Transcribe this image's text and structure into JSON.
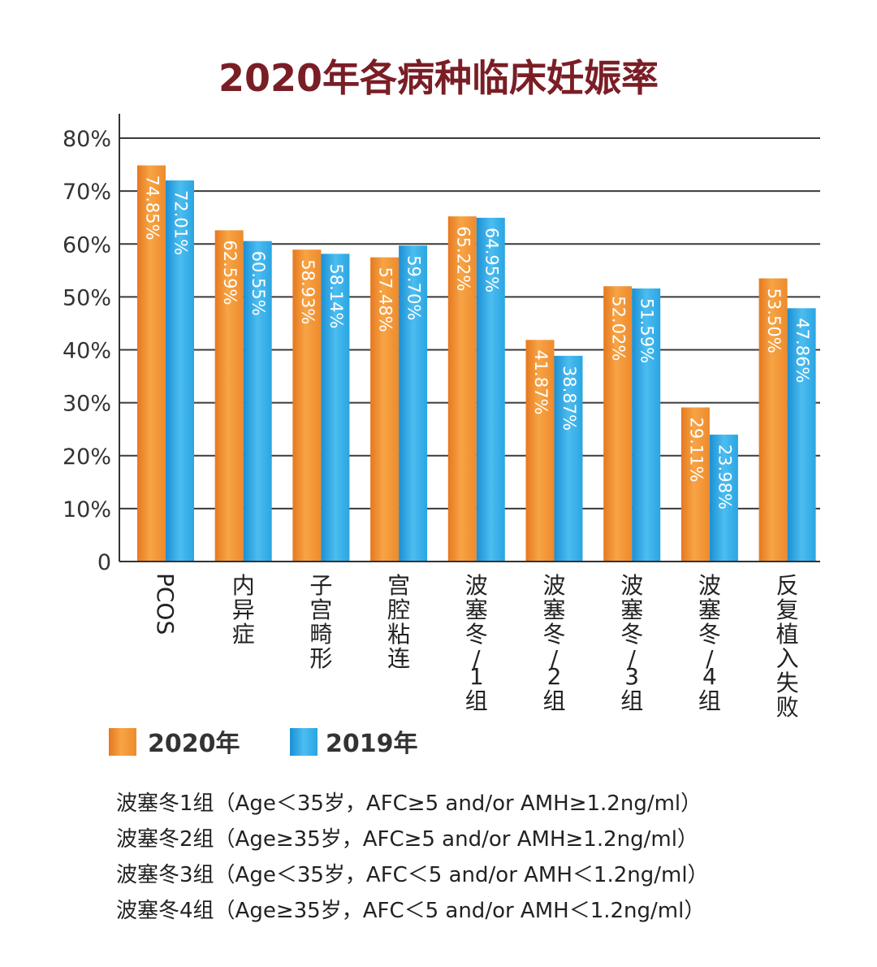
{
  "chart_data": {
    "type": "bar",
    "title": "2020年各病种临床妊娠率",
    "categories": [
      "PCOS",
      "内异症",
      "子宫畸形",
      "宫腔粘连",
      "波塞冬/1组",
      "波塞冬/2组",
      "波塞冬/3组",
      "波塞冬/4组",
      "反复植入失败"
    ],
    "series": [
      {
        "name": "2020年",
        "values": [
          74.85,
          62.59,
          58.93,
          57.48,
          65.22,
          41.87,
          52.02,
          29.11,
          53.5
        ],
        "labels": [
          "74.85%",
          "62.59%",
          "58.93%",
          "57.48%",
          "65.22%",
          "41.87%",
          "52.02%",
          "29.11%",
          "53.50%"
        ]
      },
      {
        "name": "2019年",
        "values": [
          72.01,
          60.55,
          58.14,
          59.7,
          64.95,
          38.87,
          51.59,
          23.98,
          47.86
        ],
        "labels": [
          "72.01%",
          "60.55%",
          "58.14%",
          "59.70%",
          "64.95%",
          "38.87%",
          "51.59%",
          "23.98%",
          "47.86%"
        ]
      }
    ],
    "ylim": [
      0,
      80
    ],
    "yticks": [
      0,
      10,
      20,
      30,
      40,
      50,
      60,
      70,
      80
    ],
    "ytick_labels": [
      "0",
      "10%",
      "20%",
      "30%",
      "40%",
      "50%",
      "60%",
      "70%",
      "80%"
    ],
    "grid": true,
    "legend_position": "bottom-left",
    "colors": {
      "2020年": "#f39032",
      "2019年": "#2ea7e0"
    }
  },
  "notes": [
    "波塞冬1组（Age＜35岁，AFC≥5 and/or AMH≥1.2ng/ml）",
    "波塞冬2组（Age≥35岁，AFC≥5 and/or AMH≥1.2ng/ml）",
    "波塞冬3组（Age＜35岁，AFC＜5 and/or AMH＜1.2ng/ml）",
    "波塞冬4组（Age≥35岁，AFC＜5 and/or AMH＜1.2ng/ml）"
  ]
}
